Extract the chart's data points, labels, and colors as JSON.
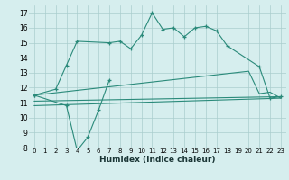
{
  "xlabel": "Humidex (Indice chaleur)",
  "series": {
    "main_curve": {
      "x": [
        0,
        2,
        3,
        4,
        7,
        8,
        9,
        10,
        11,
        12,
        13,
        14,
        15,
        16,
        17,
        18,
        21,
        22,
        23
      ],
      "y": [
        11.5,
        11.9,
        13.5,
        15.1,
        15.0,
        15.1,
        14.6,
        15.5,
        17.0,
        15.9,
        16.0,
        15.4,
        16.0,
        16.1,
        15.8,
        14.8,
        13.4,
        11.3,
        11.4
      ]
    },
    "dip_curve": {
      "x": [
        0,
        3,
        4,
        5,
        6,
        7
      ],
      "y": [
        11.5,
        10.8,
        7.8,
        8.7,
        10.5,
        12.5
      ]
    },
    "upper_flat": {
      "x": [
        0,
        20,
        21,
        22,
        23
      ],
      "y": [
        11.5,
        13.1,
        11.6,
        11.7,
        11.3
      ]
    },
    "mid_flat": {
      "x": [
        0,
        23
      ],
      "y": [
        11.1,
        11.4
      ]
    },
    "lower_flat": {
      "x": [
        0,
        23
      ],
      "y": [
        10.8,
        11.3
      ]
    }
  },
  "line_color": "#2a8a7a",
  "bg_color": "#d6eeee",
  "grid_color": "#aacece",
  "ylim": [
    8,
    17.5
  ],
  "xlim": [
    -0.5,
    23.5
  ],
  "yticks": [
    8,
    9,
    10,
    11,
    12,
    13,
    14,
    15,
    16,
    17
  ],
  "xticks": [
    0,
    1,
    2,
    3,
    4,
    5,
    6,
    7,
    8,
    9,
    10,
    11,
    12,
    13,
    14,
    15,
    16,
    17,
    18,
    19,
    20,
    21,
    22,
    23
  ]
}
